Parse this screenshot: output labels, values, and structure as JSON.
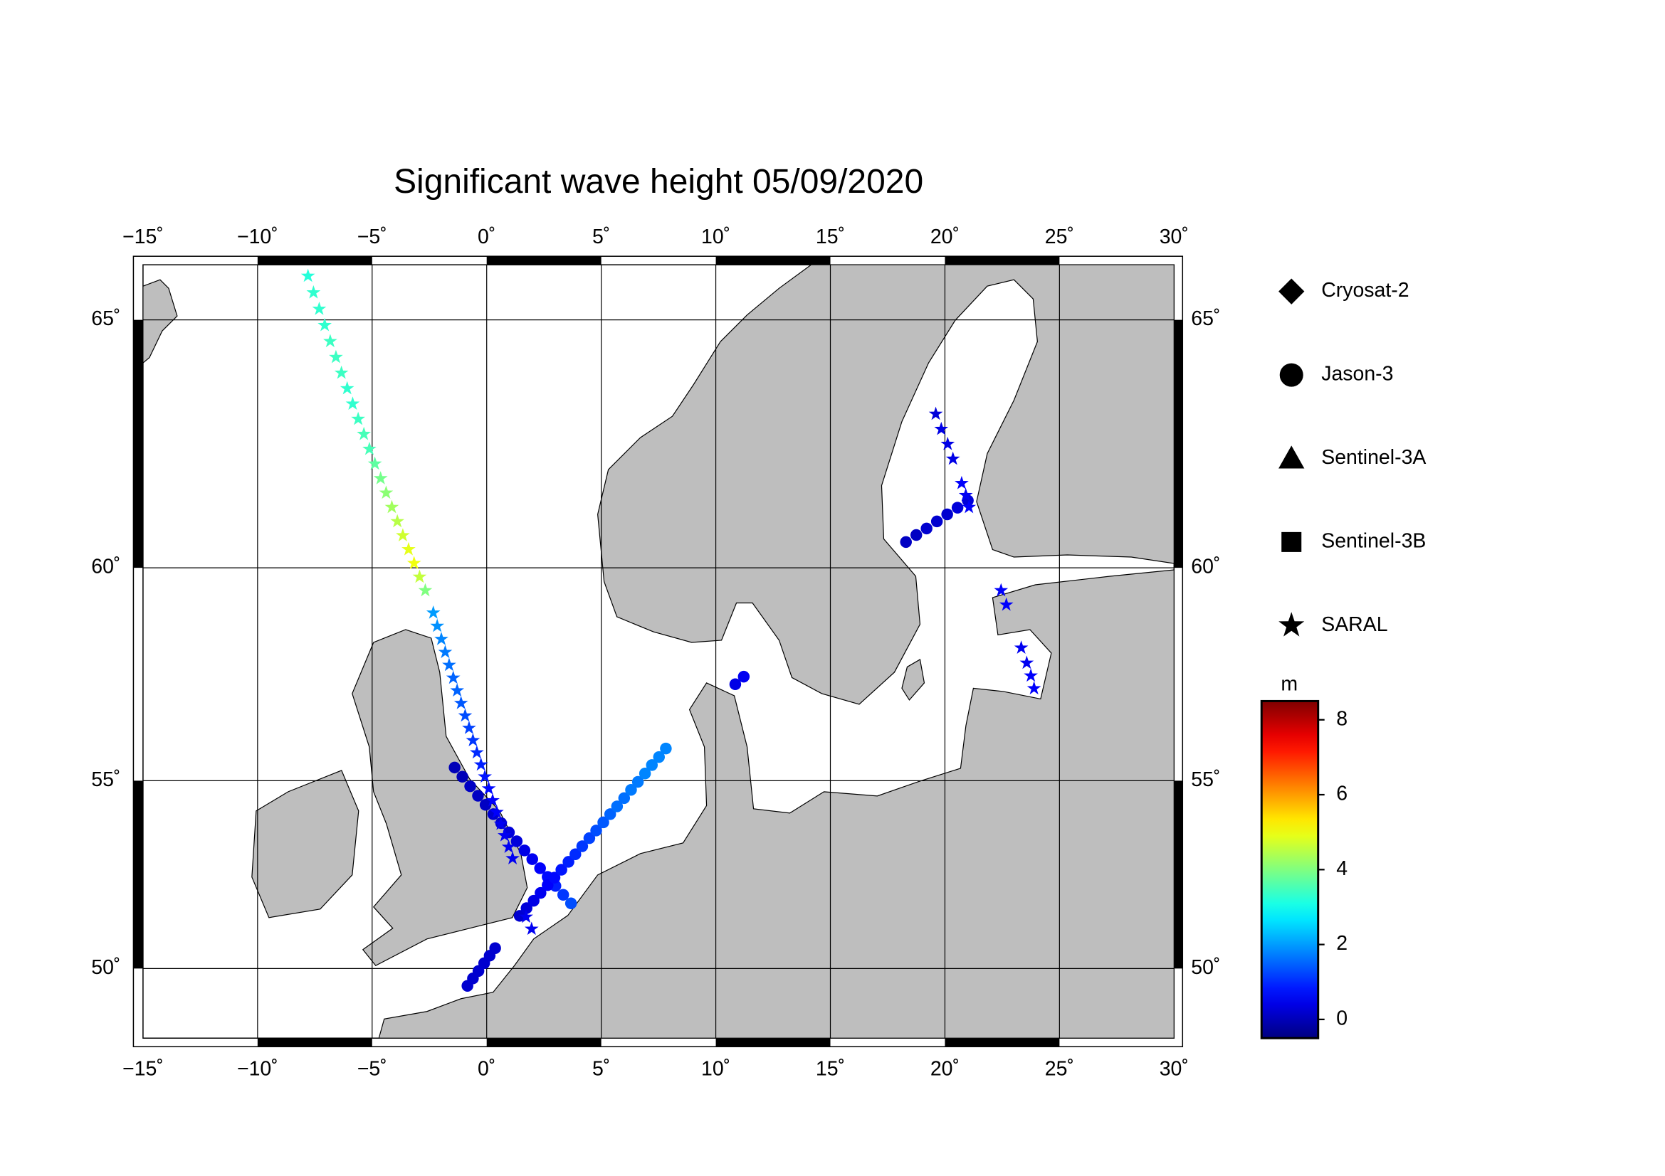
{
  "chart_data": {
    "type": "map",
    "title": "Significant wave height 05/09/2020",
    "xlim": [
      -15,
      30
    ],
    "ylim": [
      48,
      66
    ],
    "projection": "mercator",
    "grid": true,
    "land_color": "#bebebe",
    "xticks": [
      {
        "value": -15,
        "label": "−15˚"
      },
      {
        "value": -10,
        "label": "−10˚"
      },
      {
        "value": -5,
        "label": "−5˚"
      },
      {
        "value": 0,
        "label": "0˚"
      },
      {
        "value": 5,
        "label": "5˚"
      },
      {
        "value": 10,
        "label": "10˚"
      },
      {
        "value": 15,
        "label": "15˚"
      },
      {
        "value": 20,
        "label": "20˚"
      },
      {
        "value": 25,
        "label": "25˚"
      },
      {
        "value": 30,
        "label": "30˚"
      }
    ],
    "yticks": [
      {
        "value": 50,
        "label": "50˚"
      },
      {
        "value": 55,
        "label": "55˚"
      },
      {
        "value": 60,
        "label": "60˚"
      },
      {
        "value": 65,
        "label": "65˚"
      }
    ],
    "colormap": "jet",
    "clim": [
      -0.5,
      8.5
    ],
    "cticks": [
      0,
      2,
      4,
      6,
      8
    ],
    "colorbar_label": "m",
    "series": [
      {
        "name": "Cryosat-2",
        "marker": "diamond",
        "color": "#000000",
        "lon": [],
        "lat": [],
        "values": []
      },
      {
        "name": "Jason-3",
        "marker": "circle",
        "color": "#000000",
        "lon": [
          -1.4,
          -1.06,
          -0.72,
          -0.38,
          -0.05,
          0.29,
          0.63,
          0.97,
          1.31,
          1.65,
          1.99,
          2.33,
          2.66,
          3.0,
          3.34,
          3.68,
          -0.84,
          -0.6,
          -0.36,
          -0.11,
          0.13,
          0.37,
          1.44,
          1.74,
          2.05,
          2.35,
          2.66,
          2.96,
          3.26,
          3.57,
          3.87,
          4.17,
          4.48,
          4.78,
          5.09,
          5.39,
          5.69,
          6.0,
          6.3,
          6.6,
          6.91,
          7.21,
          7.52,
          7.82,
          10.85,
          11.22,
          18.3,
          18.75,
          19.2,
          19.65,
          20.1,
          20.55,
          21.0
        ],
        "lat": [
          55.33,
          55.1,
          54.86,
          54.62,
          54.39,
          54.15,
          53.92,
          53.68,
          53.45,
          53.21,
          52.98,
          52.74,
          52.51,
          52.27,
          52.03,
          51.8,
          49.51,
          49.72,
          49.93,
          50.15,
          50.36,
          50.57,
          51.46,
          51.67,
          51.87,
          52.08,
          52.29,
          52.49,
          52.7,
          52.91,
          53.11,
          53.32,
          53.53,
          53.73,
          53.94,
          54.15,
          54.35,
          54.56,
          54.77,
          54.97,
          55.18,
          55.39,
          55.59,
          55.8,
          57.35,
          57.53,
          60.56,
          60.71,
          60.85,
          61.0,
          61.15,
          61.29,
          61.44
        ],
        "values": [
          0.0,
          0.0,
          0.1,
          0.1,
          0.1,
          0.2,
          0.2,
          0.3,
          0.3,
          0.4,
          0.5,
          0.6,
          0.7,
          0.9,
          1.1,
          1.3,
          0.2,
          0.2,
          0.2,
          0.2,
          0.2,
          0.2,
          0.2,
          0.3,
          0.4,
          0.5,
          0.6,
          0.7,
          0.8,
          0.9,
          1.0,
          1.1,
          1.2,
          1.3,
          1.4,
          1.5,
          1.6,
          1.6,
          1.7,
          1.7,
          1.8,
          1.8,
          1.8,
          1.8,
          0.4,
          0.5,
          0.1,
          0.1,
          0.2,
          0.2,
          0.2,
          0.3,
          0.3
        ]
      },
      {
        "name": "Sentinel-3A",
        "marker": "triangle",
        "color": "#000000",
        "lon": [],
        "lat": [],
        "values": []
      },
      {
        "name": "Sentinel-3B",
        "marker": "square",
        "color": "#000000",
        "lon": [],
        "lat": [],
        "values": []
      },
      {
        "name": "SARAL",
        "marker": "star",
        "color": "#000000",
        "lon": [
          -7.8,
          -7.56,
          -7.31,
          -7.07,
          -6.83,
          -6.58,
          -6.34,
          -6.09,
          -5.85,
          -5.61,
          -5.36,
          -5.12,
          -4.88,
          -4.63,
          -4.39,
          -4.14,
          -3.9,
          -3.66,
          -3.41,
          -3.17,
          -2.93,
          -2.68,
          -2.33,
          -2.16,
          -1.98,
          -1.81,
          -1.64,
          -1.46,
          -1.29,
          -1.12,
          -0.94,
          -0.77,
          -0.6,
          -0.43,
          -0.25,
          -0.08,
          0.09,
          0.26,
          0.44,
          0.61,
          0.78,
          0.96,
          1.13,
          1.72,
          1.96,
          19.6,
          19.84,
          20.12,
          20.35,
          20.73,
          20.91,
          21.05,
          22.45,
          22.68,
          23.33,
          23.57,
          23.75,
          23.89
        ],
        "lat": [
          65.8,
          65.5,
          65.2,
          64.9,
          64.6,
          64.3,
          64.0,
          63.7,
          63.4,
          63.1,
          62.8,
          62.5,
          62.2,
          61.9,
          61.6,
          61.3,
          61.0,
          60.7,
          60.4,
          60.1,
          59.8,
          59.5,
          59.0,
          58.7,
          58.4,
          58.1,
          57.8,
          57.5,
          57.2,
          56.9,
          56.6,
          56.3,
          56.0,
          55.7,
          55.4,
          55.1,
          54.8,
          54.5,
          54.2,
          53.9,
          53.6,
          53.3,
          53.0,
          51.43,
          51.1,
          63.2,
          62.9,
          62.6,
          62.3,
          61.8,
          61.55,
          61.3,
          59.5,
          59.18,
          58.2,
          57.85,
          57.55,
          57.25
        ],
        "values": [
          3.2,
          3.3,
          3.3,
          3.3,
          3.4,
          3.4,
          3.4,
          3.3,
          3.3,
          3.4,
          3.5,
          3.5,
          3.7,
          3.9,
          4.1,
          4.3,
          4.5,
          4.7,
          4.9,
          5.0,
          4.6,
          4.0,
          2.0,
          1.9,
          1.8,
          1.7,
          1.6,
          1.5,
          1.5,
          1.4,
          1.3,
          1.2,
          1.1,
          1.0,
          0.9,
          0.8,
          0.7,
          0.6,
          0.6,
          0.5,
          0.5,
          0.5,
          0.5,
          0.5,
          0.5,
          0.3,
          0.4,
          0.4,
          0.4,
          0.6,
          0.5,
          0.6,
          0.6,
          0.6,
          0.5,
          0.5,
          0.6,
          0.6
        ]
      }
    ]
  }
}
